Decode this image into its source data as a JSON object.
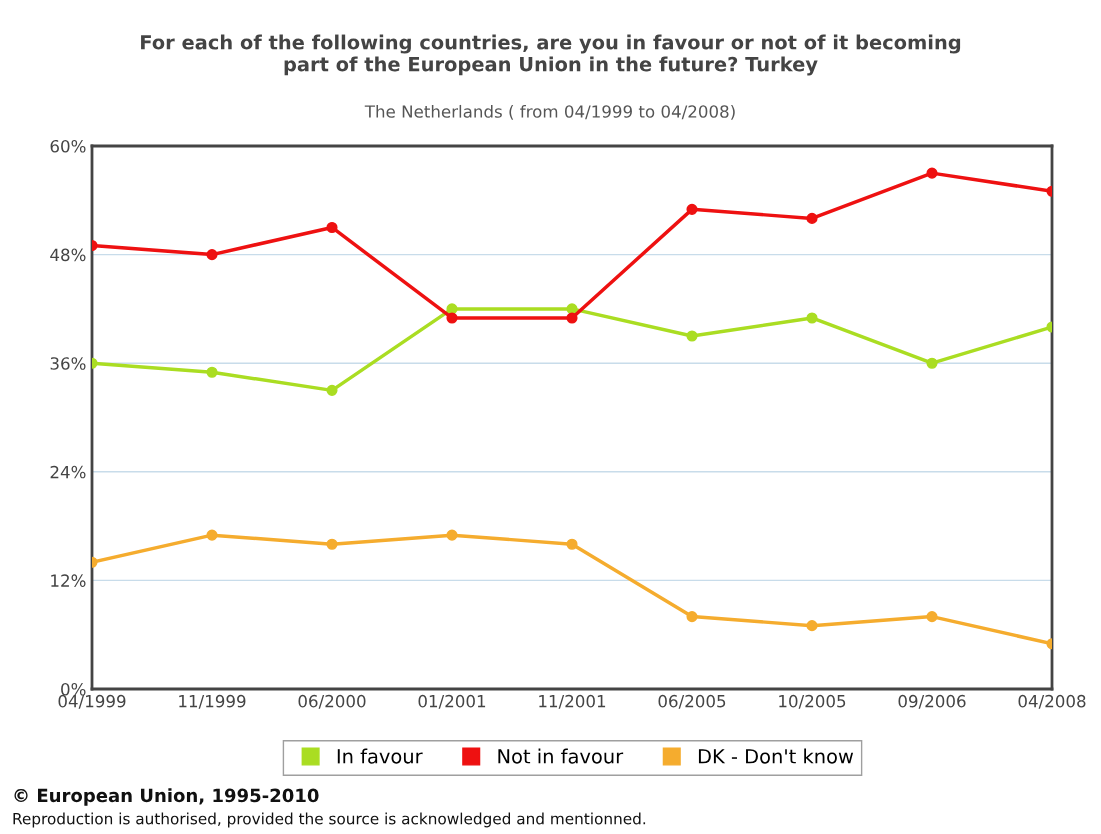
{
  "chart_data": {
    "type": "line",
    "title": "For each of the following countries, are you in favour or not of it becoming\npart of the European Union in the future? Turkey",
    "subtitle": "The Netherlands ( from 04/1999 to 04/2008)",
    "categories": [
      "04/1999",
      "11/1999",
      "06/2000",
      "01/2001",
      "11/2001",
      "06/2005",
      "10/2005",
      "09/2006",
      "04/2008"
    ],
    "series": [
      {
        "name": "In favour",
        "color": "#aadd22",
        "values": [
          36,
          35,
          33,
          42,
          42,
          39,
          41,
          36,
          40
        ]
      },
      {
        "name": "Not in favour",
        "color": "#ee1111",
        "values": [
          49,
          48,
          51,
          41,
          41,
          53,
          52,
          57,
          55
        ]
      },
      {
        "name": "DK - Don't know",
        "color": "#f5ac2e",
        "values": [
          14,
          17,
          16,
          17,
          16,
          8,
          7,
          8,
          5
        ]
      }
    ],
    "ylim": [
      0,
      60
    ],
    "yticks": [
      {
        "value": 0,
        "label": "0%"
      },
      {
        "value": 12,
        "label": "12%"
      },
      {
        "value": 24,
        "label": "24%"
      },
      {
        "value": 36,
        "label": "36%"
      },
      {
        "value": 48,
        "label": "48%"
      },
      {
        "value": 60,
        "label": "60%"
      }
    ],
    "grid": "y",
    "legend": "bottom",
    "marker": "circle",
    "line_style": "solid",
    "annotations": [
      "© European Union, 1995-2010",
      "Reproduction is authorised, provided the source is acknowledged and mentionned."
    ]
  }
}
